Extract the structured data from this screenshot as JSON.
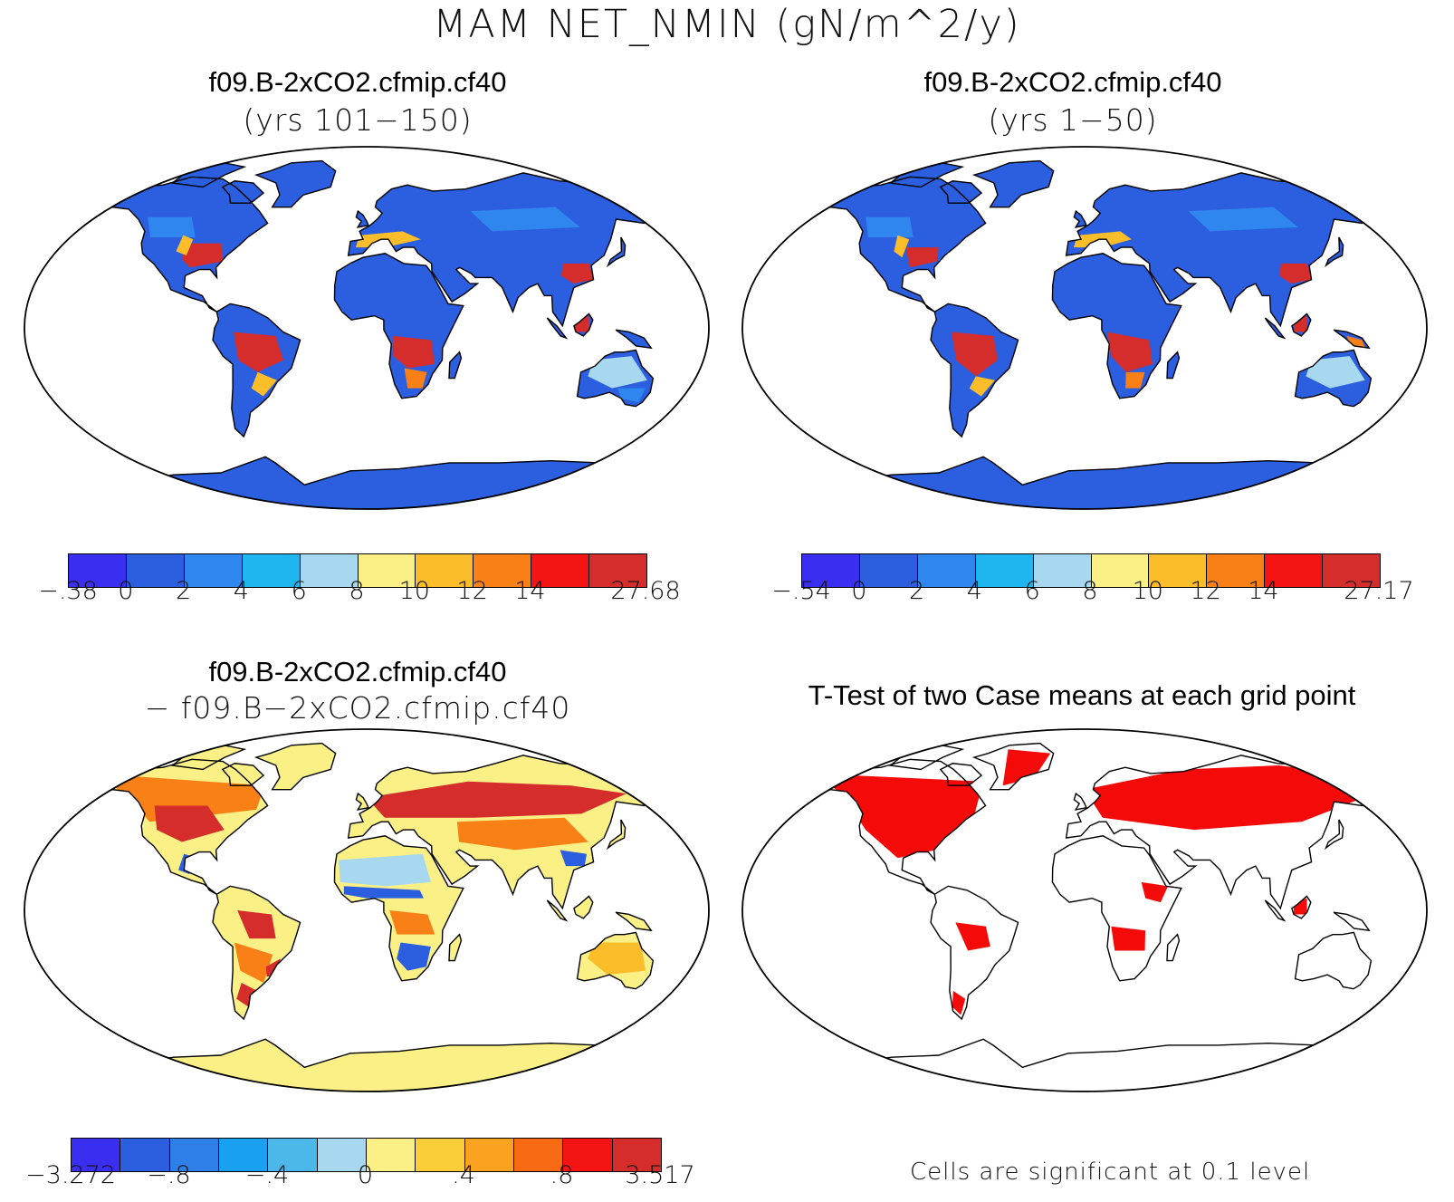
{
  "main_title": "MAM NET_NMIN (gN/m^2/y)",
  "panels": [
    {
      "id": "tl",
      "title": "f09.B-2xCO2.cfmip.cf40",
      "subtitle": "(yrs 101−150)"
    },
    {
      "id": "tr",
      "title": "f09.B-2xCO2.cfmip.cf40",
      "subtitle": "(yrs 1−50)"
    },
    {
      "id": "bl",
      "title": "f09.B-2xCO2.cfmip.cf40",
      "subtitle": "− f09.B−2xCO2.cfmip.cf40"
    },
    {
      "id": "br",
      "title": "T-Test of two Case means at each grid point",
      "subtitle": ""
    }
  ],
  "colorbars": {
    "tl": {
      "colors": [
        "#3a2ff0",
        "#2b5fe0",
        "#2f86ee",
        "#1fb6f0",
        "#a8d8f0",
        "#faf086",
        "#fbbd2a",
        "#f98016",
        "#f51414",
        "#d52c2c"
      ],
      "labels": [
        "−.38",
        "0",
        "2",
        "4",
        "6",
        "8",
        "10",
        "12",
        "14",
        "27.68"
      ],
      "label_slots": [
        0,
        1,
        2,
        3,
        4,
        5,
        6,
        7,
        8,
        10
      ]
    },
    "tr": {
      "colors": [
        "#3a2ff0",
        "#2b5fe0",
        "#2f86ee",
        "#1fb6f0",
        "#a8d8f0",
        "#faf086",
        "#fbbd2a",
        "#f98016",
        "#f51414",
        "#d52c2c"
      ],
      "labels": [
        "−.54",
        "0",
        "2",
        "4",
        "6",
        "8",
        "10",
        "12",
        "14",
        "27.17"
      ],
      "label_slots": [
        0,
        1,
        2,
        3,
        4,
        5,
        6,
        7,
        8,
        10
      ]
    },
    "bl": {
      "colors": [
        "#3a2ff0",
        "#2b5fe0",
        "#2f7fe8",
        "#1aa0f0",
        "#4cb8ea",
        "#a8d8f0",
        "#faf086",
        "#fbcd38",
        "#fba320",
        "#f86a14",
        "#f51414",
        "#d52c2c"
      ],
      "labels": [
        "−3.272",
        "−.8",
        "−.4",
        "0",
        ".4",
        ".8",
        "3.517"
      ],
      "label_slots": [
        0,
        2,
        4,
        6,
        8,
        10,
        12
      ]
    }
  },
  "footnote": "Cells are significant at 0.1 level",
  "legend_colors": {
    "land_low": "#2b5fe0",
    "land_mid": "#2f86ee",
    "land_high": "#d52c2c",
    "diff_base": "#faf086",
    "diff_pos": "#f98016",
    "diff_neg": "#2b5fe0",
    "ttest_sig": "#f50a0a"
  }
}
